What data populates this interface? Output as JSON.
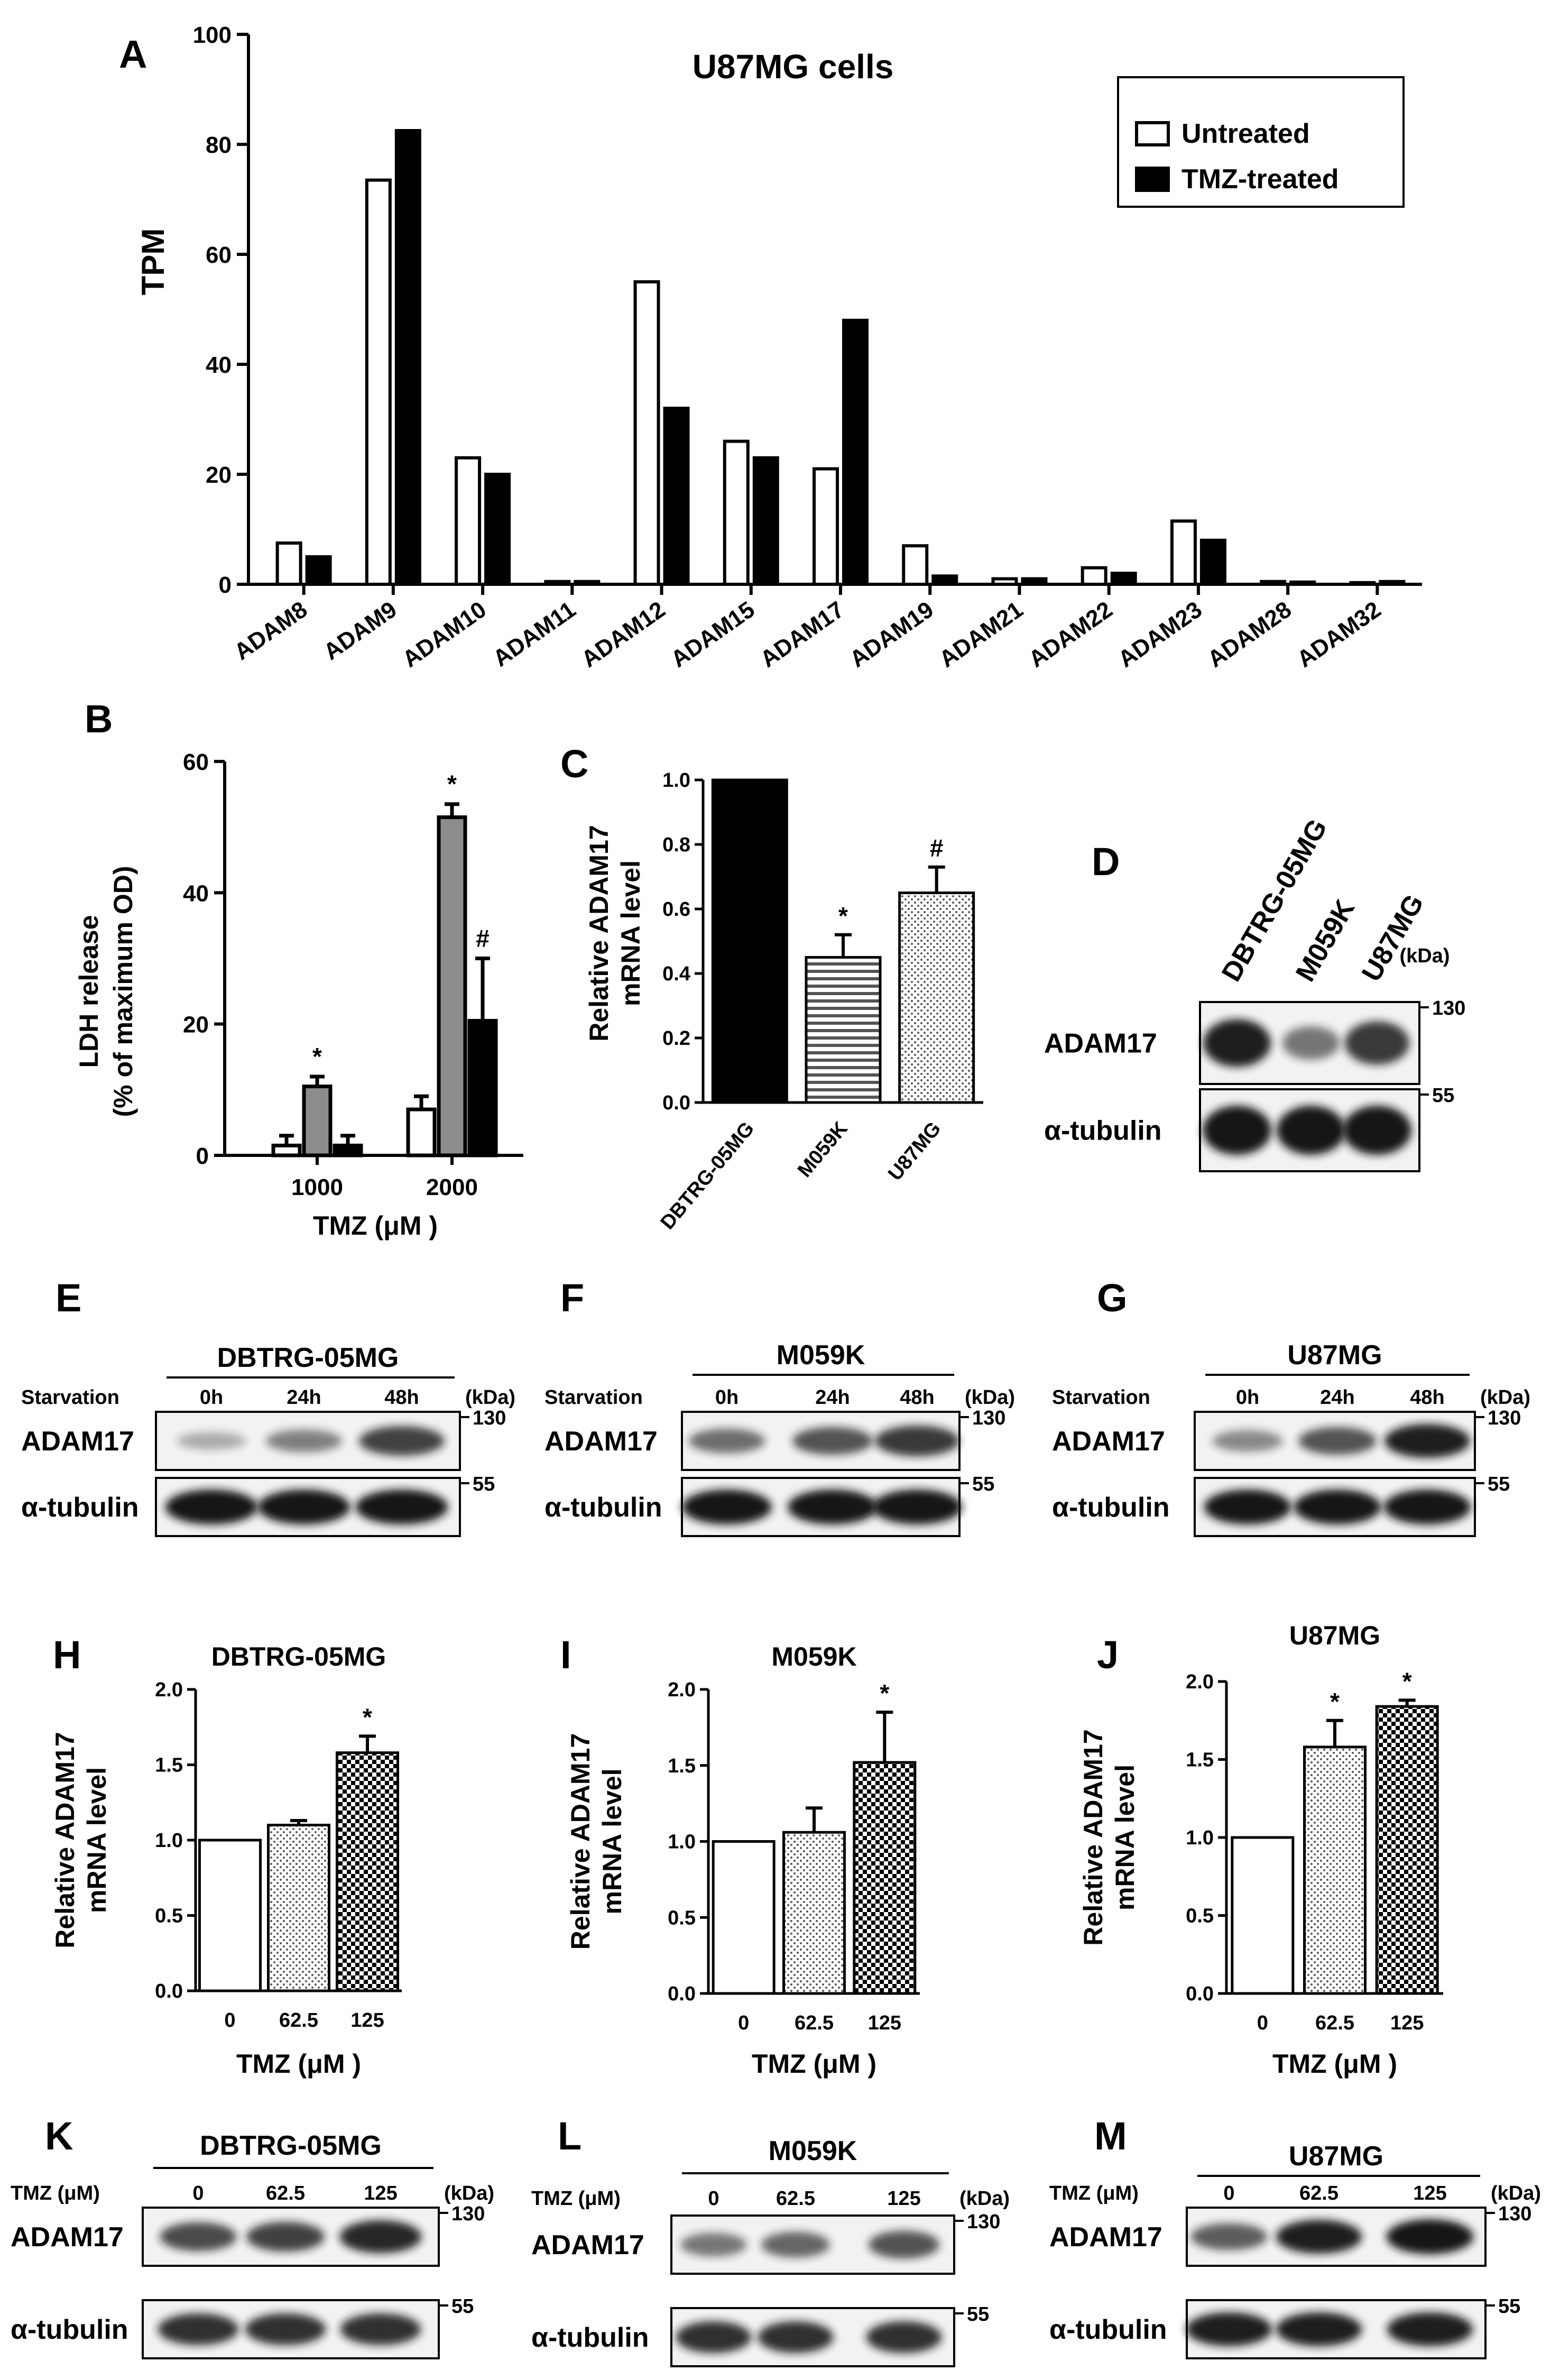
{
  "colors": {
    "black": "#000000",
    "gray": "#8c8c8c",
    "white": "#ffffff",
    "blot_bg": "#f2f2f2",
    "band": "#141414"
  },
  "icons": {
    "legend_untreated": "open-square-swatch",
    "legend_tmz": "filled-square-swatch"
  },
  "chart_data": [
    {
      "panel": "A",
      "type": "bar",
      "title": "U87MG cells",
      "ylabel": "TPM",
      "ylim": [
        0,
        100
      ],
      "yticks": [
        "0",
        "20",
        "40",
        "60",
        "80",
        "100"
      ],
      "categories": [
        "ADAM8",
        "ADAM9",
        "ADAM10",
        "ADAM11",
        "ADAM12",
        "ADAM15",
        "ADAM17",
        "ADAM19",
        "ADAM21",
        "ADAM22",
        "ADAM23",
        "ADAM28",
        "ADAM32"
      ],
      "legend_position": "top-right",
      "series": [
        {
          "name": "Untreated",
          "fill": "#ffffff",
          "values": [
            7.5,
            73.5,
            23,
            0.5,
            55,
            26,
            21,
            7,
            1,
            3,
            11.5,
            0.5,
            0.3
          ]
        },
        {
          "name": "TMZ-treated",
          "fill": "#000000",
          "values": [
            5,
            82.5,
            20,
            0.5,
            32,
            23,
            48,
            1.5,
            1,
            2,
            8,
            0.4,
            0.5
          ]
        }
      ]
    },
    {
      "panel": "B",
      "type": "bar",
      "ylabel_line1": "LDH release",
      "ylabel_line2": "(% of maximum OD)",
      "xlabel": "TMZ (μM )",
      "ylim": [
        0,
        60
      ],
      "yticks": [
        "0",
        "20",
        "40",
        "60"
      ],
      "categories": [
        "1000",
        "2000"
      ],
      "series": [
        {
          "fill": "#ffffff",
          "values": [
            1.5,
            7
          ],
          "errors": [
            1.5,
            2
          ],
          "markers": [
            "",
            ""
          ]
        },
        {
          "fill": "#8c8c8c",
          "values": [
            10.5,
            51.5
          ],
          "errors": [
            1.5,
            2
          ],
          "markers": [
            "*",
            "*"
          ]
        },
        {
          "fill": "#000000",
          "values": [
            1.5,
            20.5
          ],
          "errors": [
            1.5,
            9.5
          ],
          "markers": [
            "",
            "#"
          ]
        }
      ]
    },
    {
      "panel": "C",
      "type": "bar",
      "ylabel_line1": "Relative ADAM17",
      "ylabel_line2": "mRNA level",
      "ylim": [
        0,
        1.0
      ],
      "yticks": [
        "0.0",
        "0.2",
        "0.4",
        "0.6",
        "0.8",
        "1.0"
      ],
      "categories": [
        "DBTRG-05MG",
        "M059K",
        "U87MG"
      ],
      "values": [
        1.0,
        0.45,
        0.65
      ],
      "errors": [
        0,
        0.07,
        0.08
      ],
      "patterns": [
        "solid",
        "hstripes",
        "dots"
      ],
      "markers": [
        "",
        "*",
        "#"
      ]
    },
    {
      "panel": "H",
      "type": "bar",
      "title": "DBTRG-05MG",
      "ylabel_line1": "Relative ADAM17",
      "ylabel_line2": "mRNA level",
      "xlabel": "TMZ (μM )",
      "ylim": [
        0,
        2.0
      ],
      "yticks": [
        "0.0",
        "0.5",
        "1.0",
        "1.5",
        "2.0"
      ],
      "categories": [
        "0",
        "62.5",
        "125"
      ],
      "values": [
        1.0,
        1.1,
        1.58
      ],
      "errors": [
        0,
        0.03,
        0.11
      ],
      "patterns": [
        "white",
        "dots",
        "checker"
      ],
      "markers": [
        "",
        "",
        "*"
      ]
    },
    {
      "panel": "I",
      "type": "bar",
      "title": "M059K",
      "ylabel_line1": "Relative ADAM17",
      "ylabel_line2": "mRNA level",
      "xlabel": "TMZ (μM )",
      "ylim": [
        0,
        2.0
      ],
      "yticks": [
        "0.0",
        "0.5",
        "1.0",
        "1.5",
        "2.0"
      ],
      "categories": [
        "0",
        "62.5",
        "125"
      ],
      "values": [
        1.0,
        1.06,
        1.52
      ],
      "errors": [
        0,
        0.16,
        0.33
      ],
      "patterns": [
        "white",
        "dots",
        "checker"
      ],
      "markers": [
        "",
        "",
        "*"
      ]
    },
    {
      "panel": "J",
      "type": "bar",
      "title": "U87MG",
      "ylabel_line1": "Relative ADAM17",
      "ylabel_line2": "mRNA level",
      "xlabel": "TMZ (μM )",
      "ylim": [
        0,
        2.0
      ],
      "yticks": [
        "0.0",
        "0.5",
        "1.0",
        "1.5",
        "2.0"
      ],
      "categories": [
        "0",
        "62.5",
        "125"
      ],
      "values": [
        1.0,
        1.58,
        1.84
      ],
      "errors": [
        0,
        0.17,
        0.04
      ],
      "patterns": [
        "white",
        "dots",
        "checker"
      ],
      "markers": [
        "",
        "*",
        "*"
      ]
    }
  ],
  "blots": {
    "D": {
      "letter": "D",
      "lanes": [
        "DBTRG-05MG",
        "M059K",
        "U87MG"
      ],
      "kda": "(kDa)",
      "rows": [
        {
          "label": "ADAM17",
          "marker": "130",
          "intensities": [
            0.95,
            0.45,
            0.8
          ]
        },
        {
          "label": "α-tubulin",
          "marker": "55",
          "intensities": [
            1,
            1,
            1
          ]
        }
      ]
    },
    "E": {
      "letter": "E",
      "title": "DBTRG-05MG",
      "condition": "Starvation",
      "lanes": [
        "0h",
        "24h",
        "48h"
      ],
      "kda": "(kDa)",
      "rows": [
        {
          "label": "ADAM17",
          "marker": "130",
          "intensities": [
            0.15,
            0.4,
            0.75
          ]
        },
        {
          "label": "α-tubulin",
          "marker": "55",
          "intensities": [
            1,
            1,
            1
          ]
        }
      ]
    },
    "F": {
      "letter": "F",
      "title": "M059K",
      "condition": "Starvation",
      "lanes": [
        "0h",
        "24h",
        "48h"
      ],
      "kda": "(kDa)",
      "rows": [
        {
          "label": "ADAM17",
          "marker": "130",
          "intensities": [
            0.5,
            0.65,
            0.8
          ]
        },
        {
          "label": "α-tubulin",
          "marker": "55",
          "intensities": [
            1,
            1,
            1
          ]
        }
      ]
    },
    "G": {
      "letter": "G",
      "title": "U87MG",
      "condition": "Starvation",
      "lanes": [
        "0h",
        "24h",
        "48h"
      ],
      "kda": "(kDa)",
      "rows": [
        {
          "label": "ADAM17",
          "marker": "130",
          "intensities": [
            0.35,
            0.65,
            0.95
          ]
        },
        {
          "label": "α-tubulin",
          "marker": "55",
          "intensities": [
            1,
            1,
            1
          ]
        }
      ]
    },
    "K": {
      "letter": "K",
      "title": "DBTRG-05MG",
      "condition": "TMZ (μM)",
      "lanes": [
        "0",
        "62.5",
        "125"
      ],
      "kda": "(kDa)",
      "rows": [
        {
          "label": "ADAM17",
          "marker": "130",
          "intensities": [
            0.7,
            0.75,
            0.9
          ]
        },
        {
          "label": "α-tubulin",
          "marker": "55",
          "intensities": [
            0.85,
            0.85,
            0.85
          ]
        }
      ]
    },
    "L": {
      "letter": "L",
      "title": "M059K",
      "condition": "TMZ (μM)",
      "lanes": [
        "0",
        "62.5",
        "125"
      ],
      "kda": "(kDa)",
      "rows": [
        {
          "label": "ADAM17",
          "marker": "130",
          "intensities": [
            0.45,
            0.55,
            0.65
          ]
        },
        {
          "label": "α-tubulin",
          "marker": "55",
          "intensities": [
            0.85,
            0.85,
            0.85
          ]
        }
      ]
    },
    "M": {
      "letter": "M",
      "title": "U87MG",
      "condition": "TMZ (μM)",
      "lanes": [
        "0",
        "62.5",
        "125"
      ],
      "kda": "(kDa)",
      "rows": [
        {
          "label": "ADAM17",
          "marker": "130",
          "intensities": [
            0.6,
            0.95,
            1
          ]
        },
        {
          "label": "α-tubulin",
          "marker": "55",
          "intensities": [
            0.95,
            0.95,
            0.95
          ]
        }
      ]
    }
  }
}
